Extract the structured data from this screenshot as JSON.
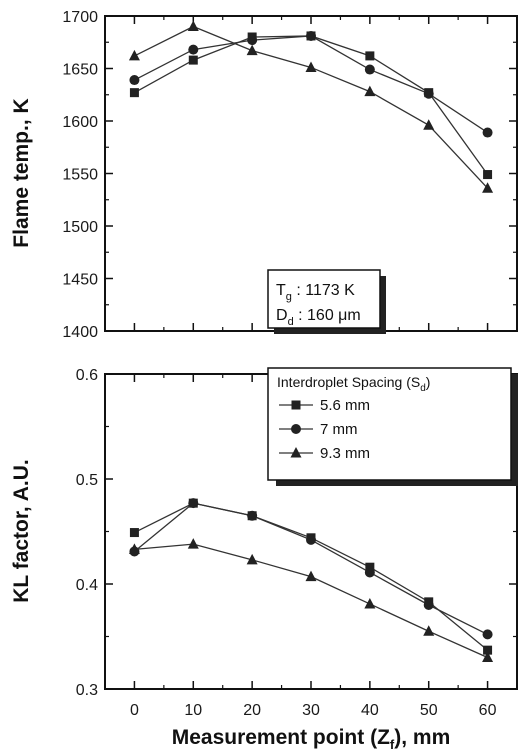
{
  "chart_data": [
    {
      "type": "line",
      "ylabel": "Flame temp., K",
      "xlabel": "",
      "x": [
        0,
        10,
        20,
        30,
        40,
        50,
        60
      ],
      "xlim": [
        -5,
        65
      ],
      "ylim": [
        1400,
        1700
      ],
      "yticks": [
        "1400",
        "1450",
        "1500",
        "1550",
        "1600",
        "1650",
        "1700"
      ],
      "series": [
        {
          "name": "5.6 mm",
          "marker": "square",
          "values": [
            1627,
            1658,
            1680,
            1681,
            1662,
            1627,
            1549
          ]
        },
        {
          "name": "7 mm",
          "marker": "circle",
          "values": [
            1639,
            1668,
            1677,
            1681,
            1649,
            1626,
            1589
          ]
        },
        {
          "name": "9.3 mm",
          "marker": "triangle",
          "values": [
            1662,
            1690,
            1667,
            1651,
            1628,
            1596,
            1536
          ]
        }
      ],
      "annotation": {
        "line1": {
          "main": "T",
          "sub": "g",
          "rest": " : 1173 K"
        },
        "line2": {
          "main": "D",
          "sub": "d",
          "rest": " : 160 μm"
        }
      }
    },
    {
      "type": "line",
      "ylabel": "KL factor, A.U.",
      "xlabel": {
        "main": "Measurement point (Z",
        "sub": "f",
        "rest": "), mm"
      },
      "x": [
        0,
        10,
        20,
        30,
        40,
        50,
        60
      ],
      "xlim": [
        -5,
        65
      ],
      "ylim": [
        0.3,
        0.6
      ],
      "xticks": [
        "0",
        "10",
        "20",
        "30",
        "40",
        "50",
        "60"
      ],
      "yticks": [
        "0.3",
        "0.4",
        "0.5",
        "0.6"
      ],
      "legend": {
        "title": {
          "main": "Interdroplet Spacing (S",
          "sub": "d",
          "rest": ")"
        },
        "placement": "top-right"
      },
      "series": [
        {
          "name": "5.6 mm",
          "marker": "square",
          "values": [
            0.449,
            0.477,
            0.465,
            0.444,
            0.416,
            0.383,
            0.337
          ]
        },
        {
          "name": "7 mm",
          "marker": "circle",
          "values": [
            0.431,
            0.477,
            0.465,
            0.442,
            0.411,
            0.38,
            0.352
          ]
        },
        {
          "name": "9.3 mm",
          "marker": "triangle",
          "values": [
            0.433,
            0.438,
            0.423,
            0.407,
            0.381,
            0.355,
            0.33
          ]
        }
      ]
    }
  ]
}
